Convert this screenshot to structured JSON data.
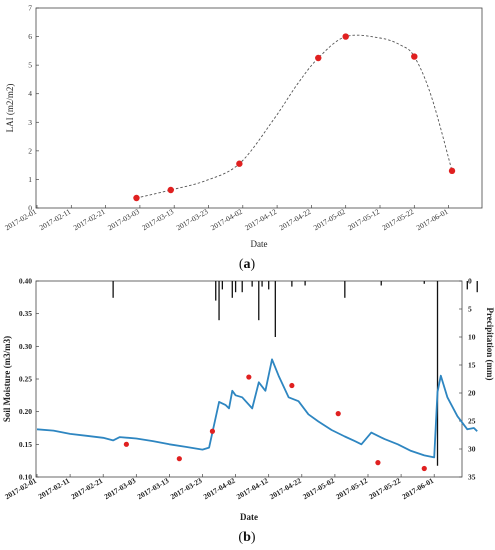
{
  "colors": {
    "point": "#e02020",
    "moisture": "#2e86c1",
    "precip": "#111111",
    "curve": "#555555"
  },
  "chart_data": [
    {
      "type": "scatter",
      "caption": "(a)",
      "xlabel": "Date",
      "ylabel": "LAI (m2/m2)",
      "ylim": [
        0,
        7
      ],
      "yticks": [
        0,
        1,
        2,
        3,
        4,
        5,
        6,
        7
      ],
      "x_tick_labels": [
        "2017-02-01",
        "2017-02-11",
        "2017-02-21",
        "2017-03-03",
        "2017-03-13",
        "2017-03-23",
        "2017-04-02",
        "2017-04-12",
        "2017-04-22",
        "2017-05-02",
        "2017-05-12",
        "2017-05-22",
        "2017-06-01"
      ],
      "grid": false,
      "series": [
        {
          "values": [
            {
              "x": "2017-03-02",
              "y": 0.35
            },
            {
              "x": "2017-03-12",
              "y": 0.63
            },
            {
              "x": "2017-04-01",
              "y": 1.55
            },
            {
              "x": "2017-04-24",
              "y": 5.25
            },
            {
              "x": "2017-05-02",
              "y": 6.0
            },
            {
              "x": "2017-05-22",
              "y": 5.3
            },
            {
              "x": "2017-06-02",
              "y": 1.3
            }
          ]
        }
      ],
      "fit_curve": [
        {
          "x": "2017-03-02",
          "y": 0.35
        },
        {
          "x": "2017-03-12",
          "y": 0.63
        },
        {
          "x": "2017-03-22",
          "y": 0.95
        },
        {
          "x": "2017-04-01",
          "y": 1.55
        },
        {
          "x": "2017-04-11",
          "y": 3.1
        },
        {
          "x": "2017-04-18",
          "y": 4.35
        },
        {
          "x": "2017-04-24",
          "y": 5.25
        },
        {
          "x": "2017-05-02",
          "y": 6.0
        },
        {
          "x": "2017-05-12",
          "y": 5.95
        },
        {
          "x": "2017-05-18",
          "y": 5.7
        },
        {
          "x": "2017-05-22",
          "y": 5.3
        },
        {
          "x": "2017-05-27",
          "y": 3.9
        },
        {
          "x": "2017-06-02",
          "y": 1.3
        }
      ]
    },
    {
      "type": "line",
      "caption": "(b)",
      "xlabel": "Date",
      "ylabel": "Soil Moisture (m3/m3)",
      "y2label": "Precipitation (mm)",
      "ylim": [
        0.1,
        0.4
      ],
      "yticks": [
        "0.10",
        "0.15",
        "0.20",
        "0.25",
        "0.30",
        "0.35",
        "0.40"
      ],
      "y2lim": [
        0,
        35
      ],
      "y2ticks": [
        0,
        5,
        10,
        15,
        20,
        25,
        30,
        35
      ],
      "y2_inverted": true,
      "x_tick_labels": [
        "2017-02-01",
        "2017-02-11",
        "2017-02-21",
        "2017-03-03",
        "2017-03-13",
        "2017-03-23",
        "2017-04-02",
        "2017-04-12",
        "2017-04-22",
        "2017-05-02",
        "2017-05-12",
        "2017-05-22",
        "2017-06-01"
      ],
      "grid": false,
      "soil_moisture": [
        {
          "x": "2017-02-01",
          "y": 0.173
        },
        {
          "x": "2017-02-06",
          "y": 0.171
        },
        {
          "x": "2017-02-11",
          "y": 0.166
        },
        {
          "x": "2017-02-16",
          "y": 0.163
        },
        {
          "x": "2017-02-21",
          "y": 0.16
        },
        {
          "x": "2017-02-24",
          "y": 0.156
        },
        {
          "x": "2017-02-26",
          "y": 0.161
        },
        {
          "x": "2017-03-03",
          "y": 0.159
        },
        {
          "x": "2017-03-08",
          "y": 0.155
        },
        {
          "x": "2017-03-13",
          "y": 0.15
        },
        {
          "x": "2017-03-18",
          "y": 0.146
        },
        {
          "x": "2017-03-23",
          "y": 0.142
        },
        {
          "x": "2017-03-25",
          "y": 0.145
        },
        {
          "x": "2017-03-28",
          "y": 0.215
        },
        {
          "x": "2017-03-30",
          "y": 0.21
        },
        {
          "x": "2017-03-31",
          "y": 0.205
        },
        {
          "x": "2017-04-01",
          "y": 0.232
        },
        {
          "x": "2017-04-02",
          "y": 0.225
        },
        {
          "x": "2017-04-04",
          "y": 0.222
        },
        {
          "x": "2017-04-07",
          "y": 0.205
        },
        {
          "x": "2017-04-09",
          "y": 0.245
        },
        {
          "x": "2017-04-11",
          "y": 0.232
        },
        {
          "x": "2017-04-13",
          "y": 0.28
        },
        {
          "x": "2017-04-15",
          "y": 0.255
        },
        {
          "x": "2017-04-18",
          "y": 0.222
        },
        {
          "x": "2017-04-21",
          "y": 0.216
        },
        {
          "x": "2017-04-24",
          "y": 0.196
        },
        {
          "x": "2017-04-27",
          "y": 0.185
        },
        {
          "x": "2017-05-01",
          "y": 0.172
        },
        {
          "x": "2017-05-05",
          "y": 0.162
        },
        {
          "x": "2017-05-08",
          "y": 0.155
        },
        {
          "x": "2017-05-10",
          "y": 0.15
        },
        {
          "x": "2017-05-13",
          "y": 0.168
        },
        {
          "x": "2017-05-17",
          "y": 0.158
        },
        {
          "x": "2017-05-21",
          "y": 0.15
        },
        {
          "x": "2017-05-25",
          "y": 0.14
        },
        {
          "x": "2017-05-29",
          "y": 0.133
        },
        {
          "x": "2017-06-01",
          "y": 0.13
        },
        {
          "x": "2017-06-02",
          "y": 0.23
        },
        {
          "x": "2017-06-03",
          "y": 0.255
        },
        {
          "x": "2017-06-05",
          "y": 0.222
        },
        {
          "x": "2017-06-08",
          "y": 0.193
        },
        {
          "x": "2017-06-11",
          "y": 0.173
        },
        {
          "x": "2017-06-13",
          "y": 0.175
        },
        {
          "x": "2017-06-14",
          "y": 0.17
        }
      ],
      "points": [
        {
          "x": "2017-02-28",
          "y": 0.15
        },
        {
          "x": "2017-03-16",
          "y": 0.128
        },
        {
          "x": "2017-03-26",
          "y": 0.17
        },
        {
          "x": "2017-04-06",
          "y": 0.253
        },
        {
          "x": "2017-04-19",
          "y": 0.24
        },
        {
          "x": "2017-05-03",
          "y": 0.197
        },
        {
          "x": "2017-05-15",
          "y": 0.122
        },
        {
          "x": "2017-05-29",
          "y": 0.113
        }
      ],
      "precipitation": [
        {
          "x": "2017-02-24",
          "y": 3.0
        },
        {
          "x": "2017-03-27",
          "y": 3.5
        },
        {
          "x": "2017-03-28",
          "y": 7.0
        },
        {
          "x": "2017-03-29",
          "y": 1.5
        },
        {
          "x": "2017-04-01",
          "y": 3.0
        },
        {
          "x": "2017-04-02",
          "y": 2.0
        },
        {
          "x": "2017-04-04",
          "y": 2.0
        },
        {
          "x": "2017-04-07",
          "y": 1.0
        },
        {
          "x": "2017-04-09",
          "y": 7.0
        },
        {
          "x": "2017-04-10",
          "y": 1.0
        },
        {
          "x": "2017-04-12",
          "y": 1.5
        },
        {
          "x": "2017-04-14",
          "y": 10.0
        },
        {
          "x": "2017-04-19",
          "y": 1.0
        },
        {
          "x": "2017-04-23",
          "y": 0.8
        },
        {
          "x": "2017-05-05",
          "y": 3.0
        },
        {
          "x": "2017-05-16",
          "y": 0.8
        },
        {
          "x": "2017-05-29",
          "y": 0.5
        },
        {
          "x": "2017-06-02",
          "y": 33.0
        },
        {
          "x": "2017-06-11",
          "y": 1.5
        },
        {
          "x": "2017-06-14",
          "y": 2.0
        }
      ]
    }
  ]
}
